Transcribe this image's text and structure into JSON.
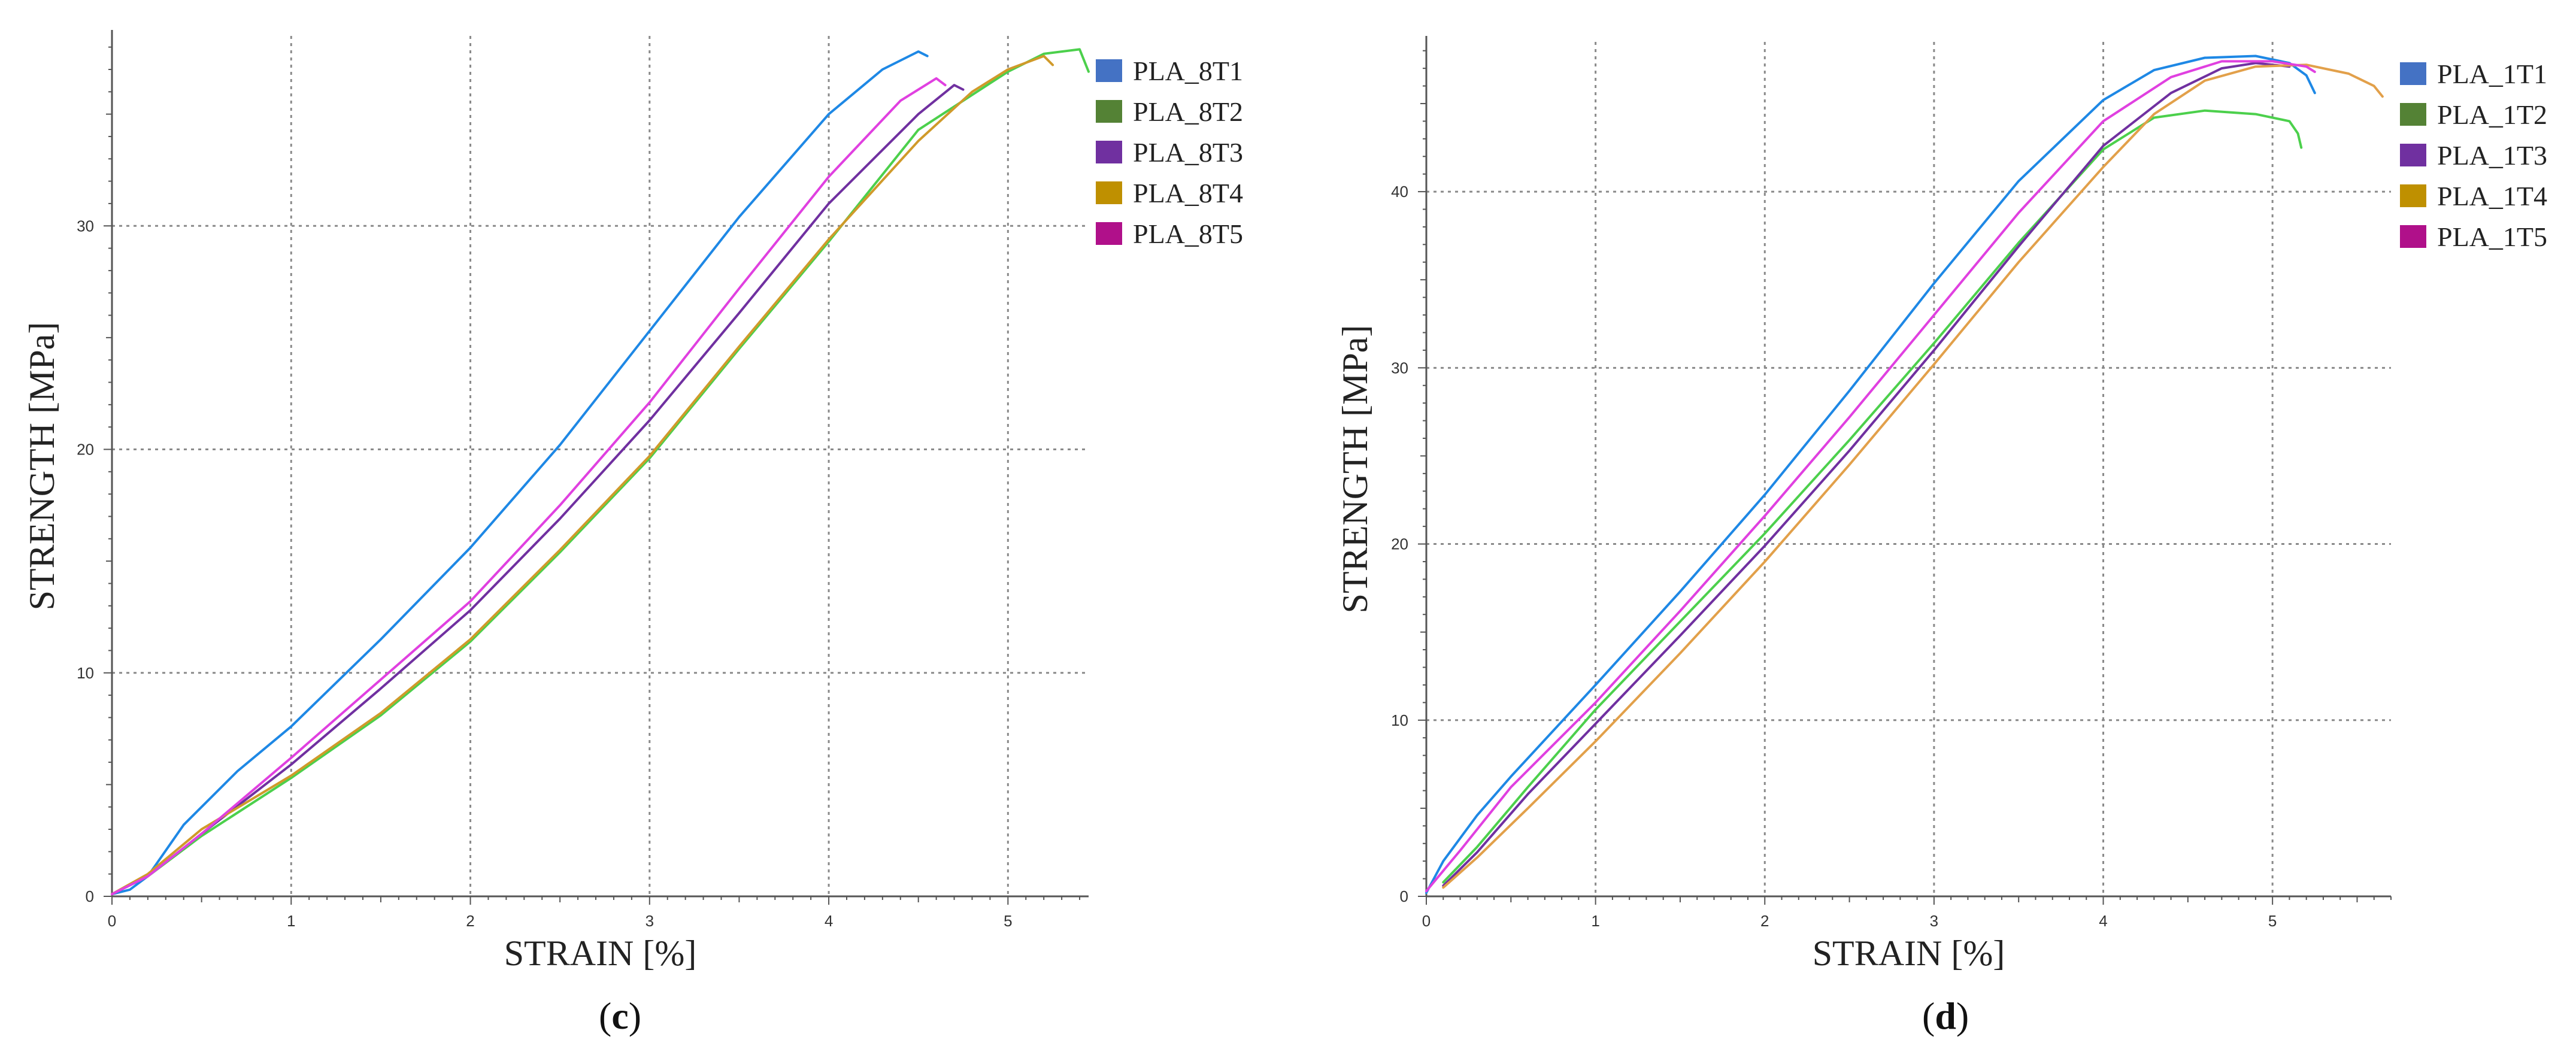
{
  "chart_data": [
    {
      "type": "line",
      "panel": "c",
      "caption_open": "(",
      "caption_letter": "c",
      "caption_close": ")",
      "xlabel": "STRAIN [%]",
      "ylabel": "STRENGTH [MPa]",
      "xlim": [
        0,
        5.45
      ],
      "ylim": [
        0,
        38.5
      ],
      "xticks": [
        0,
        1,
        2,
        3,
        4,
        5
      ],
      "yticks": [
        0,
        10,
        20,
        30
      ],
      "grid": true,
      "legend_position": "top-right",
      "series": [
        {
          "name": "PLA_8T1",
          "color": "#4472c4",
          "line_color": "#1e88e5",
          "x": [
            0,
            0.1,
            0.2,
            0.4,
            0.7,
            1.0,
            1.5,
            2.0,
            2.5,
            3.0,
            3.5,
            4.0,
            4.3,
            4.5,
            4.55
          ],
          "y": [
            0.1,
            0.3,
            0.9,
            3.2,
            5.6,
            7.6,
            11.5,
            15.6,
            20.2,
            25.3,
            30.4,
            35.0,
            37.0,
            37.8,
            37.6
          ]
        },
        {
          "name": "PLA_8T2",
          "color": "#548235",
          "line_color": "#4cd04c",
          "x": [
            0,
            0.2,
            0.5,
            1.0,
            1.5,
            2.0,
            2.5,
            3.0,
            3.5,
            4.0,
            4.5,
            5.0,
            5.2,
            5.4,
            5.45
          ],
          "y": [
            0.1,
            0.9,
            2.7,
            5.3,
            8.1,
            11.4,
            15.4,
            19.6,
            24.5,
            29.3,
            34.3,
            36.9,
            37.7,
            37.9,
            36.9
          ]
        },
        {
          "name": "PLA_8T3",
          "color": "#7030a0",
          "line_color": "#7030a0",
          "x": [
            0,
            0.2,
            0.5,
            1.0,
            1.5,
            2.0,
            2.5,
            3.0,
            3.5,
            4.0,
            4.5,
            4.7,
            4.75
          ],
          "y": [
            0.1,
            0.9,
            2.8,
            5.9,
            9.3,
            12.8,
            16.9,
            21.3,
            26.1,
            31.0,
            35.0,
            36.3,
            36.1
          ]
        },
        {
          "name": "PLA_8T4",
          "color": "#bf9000",
          "line_color": "#d09a2a",
          "x": [
            0,
            0.2,
            0.5,
            1.0,
            1.5,
            2.0,
            2.5,
            3.0,
            3.5,
            4.0,
            4.5,
            4.8,
            5.0,
            5.2,
            5.25
          ],
          "y": [
            0.1,
            1.0,
            3.0,
            5.4,
            8.2,
            11.5,
            15.5,
            19.7,
            24.6,
            29.4,
            33.8,
            36.0,
            37.0,
            37.6,
            37.2
          ]
        },
        {
          "name": "PLA_8T5",
          "color": "#b0108a",
          "line_color": "#e040e0",
          "x": [
            0,
            0.2,
            0.5,
            1.0,
            1.5,
            2.0,
            2.5,
            3.0,
            3.5,
            4.0,
            4.4,
            4.6,
            4.65
          ],
          "y": [
            0.1,
            0.9,
            2.8,
            6.2,
            9.7,
            13.2,
            17.5,
            22.1,
            27.2,
            32.2,
            35.6,
            36.6,
            36.3
          ]
        }
      ]
    },
    {
      "type": "line",
      "panel": "d",
      "caption_open": "(",
      "caption_letter": "d",
      "caption_close": ")",
      "xlabel": "STRAIN [%]",
      "ylabel": "STRENGTH [MPa]",
      "xlim": [
        0,
        5.7
      ],
      "ylim": [
        0,
        48.5
      ],
      "xticks": [
        0,
        1,
        2,
        3,
        4,
        5
      ],
      "yticks": [
        0,
        10,
        20,
        30,
        40
      ],
      "grid": true,
      "legend_position": "top-right",
      "series": [
        {
          "name": "PLA_1T1",
          "color": "#4472c4",
          "line_color": "#1e88e5",
          "x": [
            0,
            0.1,
            0.2,
            0.3,
            0.5,
            1.0,
            1.5,
            2.0,
            2.5,
            3.0,
            3.5,
            4.0,
            4.3,
            4.6,
            4.9,
            5.1,
            5.2,
            5.25
          ],
          "y": [
            0.2,
            2.0,
            3.3,
            4.6,
            6.8,
            12.0,
            17.3,
            22.8,
            28.7,
            34.8,
            40.6,
            45.2,
            46.9,
            47.6,
            47.7,
            47.3,
            46.6,
            45.6
          ]
        },
        {
          "name": "PLA_1T2",
          "color": "#548235",
          "line_color": "#4cd04c",
          "x": [
            0.1,
            0.3,
            0.6,
            1.0,
            1.5,
            2.0,
            2.5,
            3.0,
            3.5,
            4.0,
            4.3,
            4.6,
            4.9,
            5.1,
            5.15,
            5.17
          ],
          "y": [
            0.8,
            2.8,
            6.2,
            10.6,
            15.6,
            20.6,
            25.9,
            31.4,
            37.1,
            42.4,
            44.2,
            44.6,
            44.4,
            44.0,
            43.3,
            42.5
          ]
        },
        {
          "name": "PLA_1T3",
          "color": "#7030a0",
          "line_color": "#7030a0",
          "x": [
            0.1,
            0.3,
            0.6,
            1.0,
            1.5,
            2.0,
            2.5,
            3.0,
            3.5,
            4.0,
            4.4,
            4.7,
            4.9,
            5.1
          ],
          "y": [
            0.6,
            2.5,
            5.8,
            9.8,
            14.8,
            19.9,
            25.3,
            31.0,
            36.9,
            42.6,
            45.6,
            47.0,
            47.3,
            47.1
          ]
        },
        {
          "name": "PLA_1T4",
          "color": "#bf9000",
          "line_color": "#e2a04a",
          "x": [
            0.1,
            0.3,
            0.6,
            1.0,
            1.5,
            2.0,
            2.5,
            3.0,
            3.5,
            4.0,
            4.3,
            4.6,
            4.9,
            5.2,
            5.45,
            5.6,
            5.65
          ],
          "y": [
            0.5,
            2.2,
            5.0,
            8.8,
            13.8,
            19.0,
            24.5,
            30.2,
            36.0,
            41.4,
            44.4,
            46.3,
            47.1,
            47.2,
            46.7,
            46.0,
            45.4
          ]
        },
        {
          "name": "PLA_1T5",
          "color": "#b0108a",
          "line_color": "#e040e0",
          "x": [
            0,
            0.2,
            0.5,
            1.0,
            1.5,
            2.0,
            2.5,
            3.0,
            3.5,
            4.0,
            4.4,
            4.7,
            5.0,
            5.2,
            5.25
          ],
          "y": [
            0.3,
            2.6,
            6.2,
            11.0,
            16.2,
            21.6,
            27.2,
            33.0,
            38.8,
            44.0,
            46.5,
            47.4,
            47.4,
            47.1,
            46.8
          ]
        }
      ]
    }
  ]
}
